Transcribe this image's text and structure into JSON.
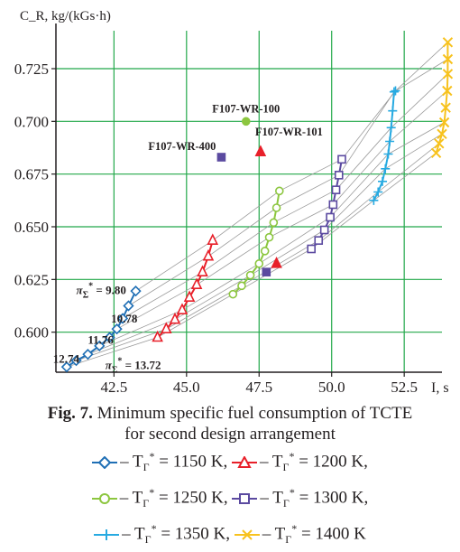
{
  "colors": {
    "grid": "#22a84a",
    "axis": "#231f20",
    "trend": "#9a9a9a",
    "s1150": "#1f6fb5",
    "s1200": "#e8202a",
    "s1250": "#8cc63f",
    "s1300": "#5b4aa0",
    "s1350": "#27aae1",
    "s1400": "#f7c21e"
  },
  "caption": {
    "fig_label": "Fig. 7.",
    "line1": "Minimum specific fuel consumption of TCTE",
    "line2": "for second design arrangement"
  },
  "legend_labels": {
    "prefix": "– T",
    "sub": "Г",
    "sup": "*",
    "s1150": "= 1150 K,",
    "s1200": "= 1200 K,",
    "s1250": "= 1250 K,",
    "s1300": "= 1300 K,",
    "s1350": "= 1350 K,",
    "s1400": "= 1400 K"
  },
  "chart_data": {
    "type": "scatter",
    "ylabel": "C_R, kg/(kGs·h)",
    "xlabel": "I, s",
    "xlim": [
      40.5,
      53.8
    ],
    "ylim": [
      0.581,
      0.743
    ],
    "x_ticks": [
      42.5,
      45.0,
      47.5,
      50.0,
      52.5
    ],
    "x_tick_labels": [
      "42.5",
      "45.0",
      "47.5",
      "50.0",
      "52.5"
    ],
    "y_ticks": [
      0.6,
      0.625,
      0.65,
      0.675,
      0.7,
      0.725
    ],
    "y_tick_labels": [
      "0.600",
      "0.625",
      "0.650",
      "0.675",
      "0.700",
      "0.725"
    ],
    "grid": true,
    "series": [
      {
        "key": "s1150",
        "name": "T_Г* = 1150 K",
        "marker": "diamond",
        "x": [
          40.87,
          41.2,
          41.6,
          42.0,
          42.35,
          42.6,
          42.8,
          43.0,
          43.25
        ],
        "y": [
          0.5835,
          0.5865,
          0.5895,
          0.5935,
          0.5975,
          0.6015,
          0.6065,
          0.6125,
          0.6195
        ]
      },
      {
        "key": "s1200",
        "name": "T_Г* = 1200 K",
        "marker": "triangle",
        "x": [
          44.0,
          44.3,
          44.6,
          44.85,
          45.1,
          45.35,
          45.55,
          45.75,
          45.9
        ],
        "y": [
          0.5975,
          0.6015,
          0.606,
          0.6105,
          0.6165,
          0.6225,
          0.6285,
          0.636,
          0.6435
        ]
      },
      {
        "key": "s1250",
        "name": "T_Г* = 1250 K",
        "marker": "circle",
        "x": [
          46.6,
          46.9,
          47.2,
          47.5,
          47.7,
          47.85,
          48.0,
          48.1,
          48.2
        ],
        "y": [
          0.618,
          0.622,
          0.627,
          0.6325,
          0.6385,
          0.645,
          0.652,
          0.659,
          0.667
        ]
      },
      {
        "key": "s1300",
        "name": "T_Г* = 1300 K",
        "marker": "square",
        "x": [
          49.3,
          49.55,
          49.75,
          49.95,
          50.05,
          50.15,
          50.25,
          50.35
        ],
        "y": [
          0.6395,
          0.6435,
          0.6485,
          0.6545,
          0.6605,
          0.6675,
          0.6745,
          0.682
        ]
      },
      {
        "key": "s1350",
        "name": "T_Г* = 1350 K",
        "marker": "plus",
        "x": [
          51.45,
          51.6,
          51.75,
          51.85,
          51.95,
          52.0,
          52.05,
          52.1,
          52.15,
          52.2
        ],
        "y": [
          0.6625,
          0.6665,
          0.6715,
          0.6775,
          0.6845,
          0.6905,
          0.697,
          0.705,
          0.714,
          0.7145
        ]
      },
      {
        "key": "s1400",
        "name": "T_Г* = 1400 K",
        "marker": "cross",
        "x": [
          53.6,
          53.7,
          53.8,
          53.88,
          53.93,
          53.98,
          54.0,
          54.0,
          54.0
        ],
        "y": [
          0.685,
          0.6895,
          0.694,
          0.6995,
          0.7065,
          0.7145,
          0.7225,
          0.7295,
          0.7375
        ]
      }
    ],
    "reference_points": [
      {
        "label": "F107-WR-100",
        "x": 47.05,
        "y": 0.7,
        "color": "#8cc63f",
        "marker": "circle"
      },
      {
        "label": "F107-WR-101",
        "x": 47.55,
        "y": 0.6855,
        "color": "#e8202a",
        "marker": "triangle"
      },
      {
        "label": "F107-WR-400",
        "x": 46.2,
        "y": 0.683,
        "color": "#5b4aa0",
        "marker": "square"
      },
      {
        "label": "",
        "x": 47.75,
        "y": 0.6285,
        "color": "#5b4aa0",
        "marker": "square"
      },
      {
        "label": "",
        "x": 48.1,
        "y": 0.6325,
        "color": "#e8202a",
        "marker": "triangle"
      }
    ],
    "annotations": [
      {
        "text": "π",
        "sub": "Σ",
        "sup": "*",
        "value": "= 9.80",
        "x": 41.2,
        "y": 0.618
      },
      {
        "text": "10.78",
        "x": 42.4,
        "y": 0.6045
      },
      {
        "text": "11.76",
        "x": 41.6,
        "y": 0.5945
      },
      {
        "text": "12.74",
        "x": 40.4,
        "y": 0.5855
      },
      {
        "text": "π",
        "sub": "Σ",
        "sup": "*",
        "value": "= 13.72",
        "x": 42.2,
        "y": 0.5825
      }
    ],
    "constant_pi_lines": true
  }
}
